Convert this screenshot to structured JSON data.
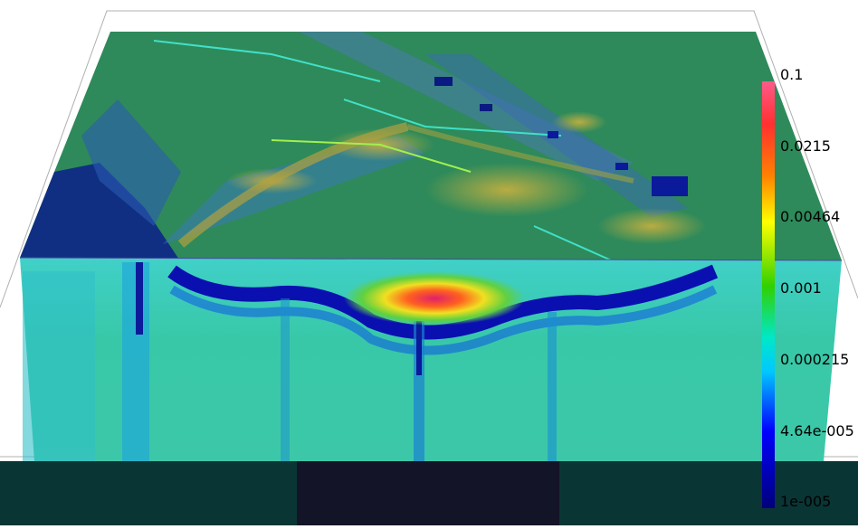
{
  "viewer": {
    "colorbar": {
      "ticks": [
        {
          "label": "0.1",
          "value": 0.1
        },
        {
          "label": "0.0215",
          "value": 0.0215
        },
        {
          "label": "0.00464",
          "value": 0.00464
        },
        {
          "label": "0.001",
          "value": 0.001
        },
        {
          "label": "0.000215",
          "value": 0.000215
        },
        {
          "label": "4.64e-005",
          "value": 4.64e-05
        },
        {
          "label": "1e-005",
          "value": 1e-05
        }
      ],
      "scale": "log",
      "range": [
        1e-05,
        0.1
      ],
      "colormap": [
        "#00007f",
        "#0000ff",
        "#00bfff",
        "#00e0c0",
        "#00c000",
        "#c0e000",
        "#ff8000",
        "#ff0000",
        "#ff80a0"
      ]
    },
    "colors": {
      "background": "#ffffff",
      "top_surface": "#2e8a5a",
      "front_face": "#3cc8b0",
      "floor": "#0a3535",
      "floor_dark": "#141428"
    }
  }
}
